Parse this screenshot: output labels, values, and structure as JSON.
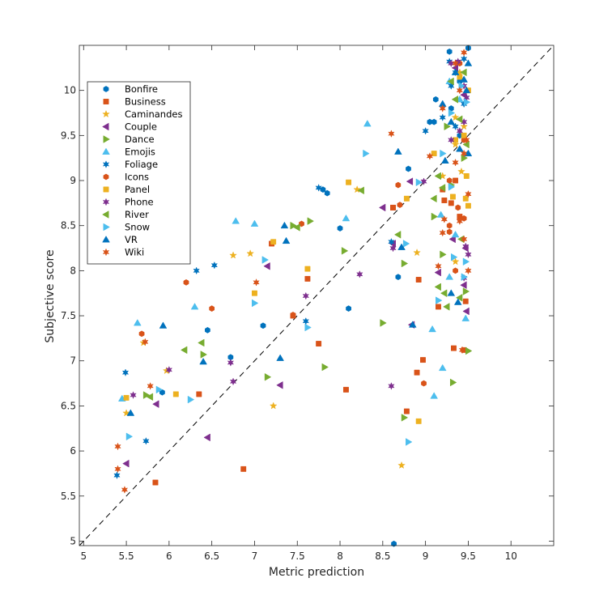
{
  "chart_data": {
    "type": "scatter",
    "title": "",
    "xlabel": "Metric prediction",
    "ylabel": "Subjective score",
    "xlim": [
      4.95,
      10.5
    ],
    "ylim": [
      4.95,
      10.5
    ],
    "xticks": [
      5,
      5.5,
      6,
      6.5,
      7,
      7.5,
      8,
      8.5,
      9,
      9.5,
      10
    ],
    "yticks": [
      5,
      5.5,
      6,
      6.5,
      7,
      7.5,
      8,
      8.5,
      9,
      9.5,
      10
    ],
    "xtick_labels": [
      "5",
      "5.5",
      "6",
      "6.5",
      "7",
      "7.5",
      "8",
      "8.5",
      "9",
      "9.5",
      "10"
    ],
    "ytick_labels": [
      "5",
      "5.5",
      "6",
      "6.5",
      "7",
      "7.5",
      "8",
      "8.5",
      "9",
      "9.5",
      "10"
    ],
    "grid": false,
    "legend_position": "top-left",
    "reference_line": "identity (dashed)",
    "series": [
      {
        "name": "Bonfire",
        "marker": "hexagon",
        "color": "#0072BD",
        "points": [
          [
            9.28,
            10.43
          ],
          [
            9.5,
            10.47
          ],
          [
            9.05,
            9.65
          ],
          [
            9.1,
            9.65
          ],
          [
            7.8,
            8.9
          ],
          [
            7.85,
            8.86
          ],
          [
            8.0,
            8.47
          ],
          [
            9.3,
            9.8
          ],
          [
            8.8,
            9.13
          ],
          [
            9.12,
            9.9
          ],
          [
            9.4,
            10.1
          ],
          [
            9.4,
            9.5
          ],
          [
            7.1,
            7.39
          ],
          [
            6.45,
            7.34
          ],
          [
            6.72,
            7.04
          ],
          [
            5.92,
            6.65
          ],
          [
            8.68,
            7.93
          ],
          [
            8.1,
            7.58
          ],
          [
            8.63,
            4.97
          ]
        ]
      },
      {
        "name": "Business",
        "marker": "square",
        "color": "#D95319",
        "points": [
          [
            9.35,
            9.0
          ],
          [
            9.2,
            8.9
          ],
          [
            9.4,
            8.6
          ],
          [
            8.62,
            8.7
          ],
          [
            9.3,
            8.75
          ],
          [
            9.22,
            8.78
          ],
          [
            8.62,
            8.7
          ],
          [
            7.2,
            8.3
          ],
          [
            7.62,
            7.91
          ],
          [
            9.15,
            7.6
          ],
          [
            9.47,
            7.66
          ],
          [
            7.45,
            7.5
          ],
          [
            7.75,
            7.19
          ],
          [
            9.33,
            7.14
          ],
          [
            9.45,
            7.12
          ],
          [
            8.97,
            7.01
          ],
          [
            8.9,
            6.87
          ],
          [
            8.07,
            6.68
          ],
          [
            6.35,
            6.63
          ],
          [
            8.78,
            6.44
          ],
          [
            6.87,
            5.8
          ],
          [
            5.84,
            5.65
          ],
          [
            8.92,
            7.9
          ]
        ]
      },
      {
        "name": "Caminandes",
        "marker": "star",
        "color": "#EDB120",
        "points": [
          [
            9.4,
            10.2
          ],
          [
            9.45,
            9.6
          ],
          [
            9.35,
            9.4
          ],
          [
            9.42,
            9.1
          ],
          [
            8.2,
            8.9
          ],
          [
            8.9,
            8.2
          ],
          [
            9.35,
            8.1
          ],
          [
            6.75,
            8.17
          ],
          [
            6.95,
            8.19
          ],
          [
            5.7,
            7.2
          ],
          [
            5.97,
            6.89
          ],
          [
            5.5,
            6.42
          ],
          [
            7.22,
            6.5
          ],
          [
            8.72,
            5.84
          ],
          [
            9.35,
            9.7
          ],
          [
            9.2,
            9.05
          ]
        ]
      },
      {
        "name": "Couple",
        "marker": "triangle-left",
        "color": "#7E2F8E",
        "points": [
          [
            9.35,
            10.25
          ],
          [
            9.45,
            9.95
          ],
          [
            8.82,
            8.99
          ],
          [
            8.5,
            8.7
          ],
          [
            8.62,
            8.3
          ],
          [
            9.32,
            8.35
          ],
          [
            9.47,
            8.25
          ],
          [
            7.15,
            8.05
          ],
          [
            9.15,
            7.98
          ],
          [
            9.45,
            7.84
          ],
          [
            8.84,
            7.4
          ],
          [
            7.3,
            6.73
          ],
          [
            5.85,
            6.52
          ],
          [
            6.45,
            6.15
          ],
          [
            5.5,
            5.86
          ],
          [
            9.48,
            7.55
          ]
        ]
      },
      {
        "name": "Dance",
        "marker": "triangle-right",
        "color": "#77AC30",
        "points": [
          [
            9.25,
            9.6
          ],
          [
            9.45,
            9.25
          ],
          [
            9.3,
            8.95
          ],
          [
            9.1,
            8.6
          ],
          [
            7.65,
            8.55
          ],
          [
            7.45,
            8.5
          ],
          [
            8.05,
            8.22
          ],
          [
            9.2,
            8.18
          ],
          [
            8.75,
            8.08
          ],
          [
            9.47,
            7.77
          ],
          [
            7.15,
            6.82
          ],
          [
            7.82,
            6.93
          ],
          [
            6.4,
            7.07
          ],
          [
            8.75,
            6.37
          ],
          [
            9.32,
            6.76
          ],
          [
            9.5,
            7.11
          ],
          [
            8.5,
            7.42
          ],
          [
            5.73,
            6.62
          ]
        ]
      },
      {
        "name": "Emojis",
        "marker": "triangle-up",
        "color": "#4DBEEE",
        "points": [
          [
            8.32,
            9.63
          ],
          [
            9.28,
            10.1
          ],
          [
            9.4,
            9.9
          ],
          [
            8.07,
            8.58
          ],
          [
            6.78,
            8.55
          ],
          [
            7.0,
            8.52
          ],
          [
            9.18,
            8.62
          ],
          [
            9.35,
            8.4
          ],
          [
            9.28,
            7.93
          ],
          [
            5.63,
            7.42
          ],
          [
            6.3,
            7.6
          ],
          [
            9.47,
            7.47
          ],
          [
            9.08,
            7.35
          ],
          [
            9.2,
            6.92
          ],
          [
            9.1,
            6.61
          ],
          [
            5.45,
            6.58
          ]
        ]
      },
      {
        "name": "Foliage",
        "marker": "hexagram",
        "color": "#0072BD",
        "points": [
          [
            9.28,
            10.32
          ],
          [
            9.45,
            10.35
          ],
          [
            9.35,
            10.2
          ],
          [
            9.3,
            10.05
          ],
          [
            9.45,
            9.85
          ],
          [
            9.2,
            9.7
          ],
          [
            9.35,
            9.6
          ],
          [
            9.0,
            9.55
          ],
          [
            7.75,
            8.92
          ],
          [
            6.32,
            8.0
          ],
          [
            6.53,
            8.06
          ],
          [
            8.6,
            8.32
          ],
          [
            5.49,
            6.87
          ],
          [
            7.6,
            7.44
          ],
          [
            5.73,
            6.11
          ],
          [
            5.39,
            5.73
          ]
        ]
      },
      {
        "name": "Icons",
        "marker": "hexagon",
        "color": "#D95319",
        "points": [
          [
            9.4,
            10.3
          ],
          [
            9.45,
            9.45
          ],
          [
            9.28,
            9.0
          ],
          [
            8.68,
            8.95
          ],
          [
            8.7,
            8.73
          ],
          [
            9.38,
            8.7
          ],
          [
            9.45,
            8.58
          ],
          [
            9.28,
            8.5
          ],
          [
            7.55,
            8.52
          ],
          [
            9.35,
            8.0
          ],
          [
            6.2,
            7.87
          ],
          [
            6.5,
            7.58
          ],
          [
            5.68,
            7.3
          ],
          [
            7.45,
            7.51
          ],
          [
            8.98,
            6.75
          ],
          [
            9.28,
            8.43
          ]
        ]
      },
      {
        "name": "Panel",
        "marker": "square",
        "color": "#EDB120",
        "points": [
          [
            9.4,
            10.15
          ],
          [
            9.5,
            10.0
          ],
          [
            9.35,
            9.45
          ],
          [
            9.45,
            9.5
          ],
          [
            9.1,
            9.3
          ],
          [
            9.48,
            9.05
          ],
          [
            8.1,
            8.98
          ],
          [
            8.78,
            8.8
          ],
          [
            9.5,
            8.72
          ],
          [
            9.47,
            8.8
          ],
          [
            7.22,
            8.32
          ],
          [
            7.62,
            8.02
          ],
          [
            7.0,
            7.75
          ],
          [
            6.08,
            6.63
          ],
          [
            5.5,
            6.59
          ],
          [
            8.92,
            6.33
          ],
          [
            9.32,
            8.82
          ]
        ]
      },
      {
        "name": "Phone",
        "marker": "hexagram",
        "color": "#7E2F8E",
        "points": [
          [
            9.3,
            10.3
          ],
          [
            9.38,
            10.32
          ],
          [
            9.45,
            10.05
          ],
          [
            9.48,
            9.92
          ],
          [
            9.45,
            9.65
          ],
          [
            9.3,
            9.45
          ],
          [
            9.4,
            9.55
          ],
          [
            8.98,
            8.99
          ],
          [
            8.62,
            8.25
          ],
          [
            8.23,
            7.96
          ],
          [
            9.47,
            8.27
          ],
          [
            9.5,
            8.18
          ],
          [
            7.6,
            7.72
          ],
          [
            9.45,
            7.92
          ],
          [
            6.0,
            6.9
          ],
          [
            6.72,
            6.98
          ],
          [
            6.75,
            6.77
          ],
          [
            8.6,
            6.72
          ],
          [
            5.58,
            6.62
          ]
        ]
      },
      {
        "name": "River",
        "marker": "triangle-left",
        "color": "#77AC30",
        "points": [
          [
            9.45,
            10.2
          ],
          [
            9.3,
            10.1
          ],
          [
            9.35,
            9.9
          ],
          [
            9.4,
            9.68
          ],
          [
            9.48,
            9.4
          ],
          [
            9.15,
            9.05
          ],
          [
            9.2,
            8.92
          ],
          [
            8.25,
            8.89
          ],
          [
            9.1,
            8.8
          ],
          [
            8.68,
            8.4
          ],
          [
            9.42,
            8.35
          ],
          [
            7.5,
            8.48
          ],
          [
            9.15,
            7.82
          ],
          [
            9.22,
            7.75
          ],
          [
            9.4,
            7.7
          ],
          [
            6.38,
            7.2
          ],
          [
            6.18,
            7.12
          ],
          [
            5.78,
            6.6
          ],
          [
            9.25,
            7.6
          ]
        ]
      },
      {
        "name": "Snow",
        "marker": "triangle-right",
        "color": "#4DBEEE",
        "points": [
          [
            9.42,
            10.05
          ],
          [
            9.48,
            9.87
          ],
          [
            9.3,
            9.75
          ],
          [
            9.2,
            9.3
          ],
          [
            8.3,
            9.3
          ],
          [
            8.92,
            8.98
          ],
          [
            9.3,
            8.93
          ],
          [
            8.77,
            8.3
          ],
          [
            9.33,
            8.15
          ],
          [
            9.47,
            8.1
          ],
          [
            7.12,
            8.12
          ],
          [
            7.0,
            7.64
          ],
          [
            7.62,
            7.37
          ],
          [
            9.45,
            7.93
          ],
          [
            6.25,
            6.57
          ],
          [
            9.15,
            7.67
          ],
          [
            5.88,
            6.68
          ],
          [
            5.53,
            6.16
          ],
          [
            8.8,
            6.1
          ]
        ]
      },
      {
        "name": "VR",
        "marker": "triangle-up",
        "color": "#0072BD",
        "points": [
          [
            9.5,
            10.3
          ],
          [
            9.35,
            10.2
          ],
          [
            9.45,
            10.12
          ],
          [
            9.48,
            10.0
          ],
          [
            9.2,
            9.85
          ],
          [
            9.4,
            9.35
          ],
          [
            9.3,
            9.65
          ],
          [
            8.68,
            9.32
          ],
          [
            9.5,
            9.3
          ],
          [
            7.35,
            8.5
          ],
          [
            7.37,
            8.33
          ],
          [
            8.72,
            8.26
          ],
          [
            9.3,
            7.75
          ],
          [
            9.38,
            7.65
          ],
          [
            8.85,
            7.4
          ],
          [
            7.3,
            7.03
          ],
          [
            5.93,
            7.39
          ],
          [
            6.4,
            6.99
          ],
          [
            5.55,
            6.42
          ],
          [
            9.23,
            9.22
          ]
        ]
      },
      {
        "name": "Wiki",
        "marker": "hexagram",
        "color": "#D95319",
        "points": [
          [
            9.45,
            10.42
          ],
          [
            9.35,
            10.3
          ],
          [
            9.4,
            10.0
          ],
          [
            9.2,
            9.8
          ],
          [
            9.05,
            9.27
          ],
          [
            8.6,
            9.52
          ],
          [
            9.35,
            9.2
          ],
          [
            9.45,
            9.3
          ],
          [
            9.5,
            8.85
          ],
          [
            9.22,
            8.57
          ],
          [
            9.4,
            8.55
          ],
          [
            7.02,
            7.87
          ],
          [
            9.2,
            8.42
          ],
          [
            9.45,
            8.35
          ],
          [
            9.5,
            8.0
          ],
          [
            9.15,
            8.05
          ],
          [
            9.43,
            7.12
          ],
          [
            5.72,
            7.21
          ],
          [
            5.78,
            6.72
          ],
          [
            5.4,
            6.05
          ],
          [
            5.4,
            5.8
          ],
          [
            5.48,
            5.57
          ],
          [
            9.48,
            9.45
          ]
        ]
      }
    ]
  }
}
